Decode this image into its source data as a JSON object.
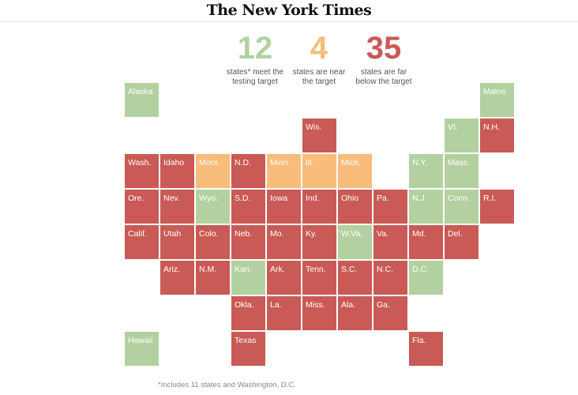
{
  "masthead": "The New York Times",
  "colors": {
    "meet": "#b3d1a0",
    "near": "#f8bc7b",
    "below": "#c95a55"
  },
  "stats": [
    {
      "value": "12",
      "line1": "states* meet the",
      "line2": "testing target",
      "status": "meet"
    },
    {
      "value": "4",
      "line1": "states are near",
      "line2": "the target",
      "status": "near"
    },
    {
      "value": "35",
      "line1": "states are far",
      "line2": "below the target",
      "status": "below"
    }
  ],
  "states": [
    {
      "label": "Alaska",
      "row": 0,
      "col": 0,
      "status": "meet"
    },
    {
      "label": "Maine",
      "row": 0,
      "col": 10,
      "status": "meet"
    },
    {
      "label": "Wis.",
      "row": 1,
      "col": 5,
      "status": "below"
    },
    {
      "label": "Vt.",
      "row": 1,
      "col": 9,
      "status": "meet"
    },
    {
      "label": "N.H.",
      "row": 1,
      "col": 10,
      "status": "below"
    },
    {
      "label": "Wash.",
      "row": 2,
      "col": 0,
      "status": "below"
    },
    {
      "label": "Idaho",
      "row": 2,
      "col": 1,
      "status": "below"
    },
    {
      "label": "Mont.",
      "row": 2,
      "col": 2,
      "status": "near"
    },
    {
      "label": "N.D.",
      "row": 2,
      "col": 3,
      "status": "below"
    },
    {
      "label": "Minn.",
      "row": 2,
      "col": 4,
      "status": "near"
    },
    {
      "label": "Ill.",
      "row": 2,
      "col": 5,
      "status": "near"
    },
    {
      "label": "Mich.",
      "row": 2,
      "col": 6,
      "status": "near"
    },
    {
      "label": "N.Y.",
      "row": 2,
      "col": 8,
      "status": "meet"
    },
    {
      "label": "Mass.",
      "row": 2,
      "col": 9,
      "status": "meet"
    },
    {
      "label": "Ore.",
      "row": 3,
      "col": 0,
      "status": "below"
    },
    {
      "label": "Nev.",
      "row": 3,
      "col": 1,
      "status": "below"
    },
    {
      "label": "Wyo.",
      "row": 3,
      "col": 2,
      "status": "meet"
    },
    {
      "label": "S.D.",
      "row": 3,
      "col": 3,
      "status": "below"
    },
    {
      "label": "Iowa",
      "row": 3,
      "col": 4,
      "status": "below"
    },
    {
      "label": "Ind.",
      "row": 3,
      "col": 5,
      "status": "below"
    },
    {
      "label": "Ohio",
      "row": 3,
      "col": 6,
      "status": "below"
    },
    {
      "label": "Pa.",
      "row": 3,
      "col": 7,
      "status": "below"
    },
    {
      "label": "N.J.",
      "row": 3,
      "col": 8,
      "status": "meet"
    },
    {
      "label": "Conn.",
      "row": 3,
      "col": 9,
      "status": "meet"
    },
    {
      "label": "R.I.",
      "row": 3,
      "col": 10,
      "status": "below"
    },
    {
      "label": "Calif.",
      "row": 4,
      "col": 0,
      "status": "below"
    },
    {
      "label": "Utah",
      "row": 4,
      "col": 1,
      "status": "below"
    },
    {
      "label": "Colo.",
      "row": 4,
      "col": 2,
      "status": "below"
    },
    {
      "label": "Neb.",
      "row": 4,
      "col": 3,
      "status": "below"
    },
    {
      "label": "Mo.",
      "row": 4,
      "col": 4,
      "status": "below"
    },
    {
      "label": "Ky.",
      "row": 4,
      "col": 5,
      "status": "below"
    },
    {
      "label": "W.Va.",
      "row": 4,
      "col": 6,
      "status": "meet"
    },
    {
      "label": "Va.",
      "row": 4,
      "col": 7,
      "status": "below"
    },
    {
      "label": "Md.",
      "row": 4,
      "col": 8,
      "status": "below"
    },
    {
      "label": "Del.",
      "row": 4,
      "col": 9,
      "status": "below"
    },
    {
      "label": "Ariz.",
      "row": 5,
      "col": 1,
      "status": "below"
    },
    {
      "label": "N.M.",
      "row": 5,
      "col": 2,
      "status": "below"
    },
    {
      "label": "Kan.",
      "row": 5,
      "col": 3,
      "status": "meet"
    },
    {
      "label": "Ark.",
      "row": 5,
      "col": 4,
      "status": "below"
    },
    {
      "label": "Tenn.",
      "row": 5,
      "col": 5,
      "status": "below"
    },
    {
      "label": "S.C.",
      "row": 5,
      "col": 6,
      "status": "below"
    },
    {
      "label": "N.C.",
      "row": 5,
      "col": 7,
      "status": "below"
    },
    {
      "label": "D.C.",
      "row": 5,
      "col": 8,
      "status": "meet"
    },
    {
      "label": "Okla.",
      "row": 6,
      "col": 3,
      "status": "below"
    },
    {
      "label": "La.",
      "row": 6,
      "col": 4,
      "status": "below"
    },
    {
      "label": "Miss.",
      "row": 6,
      "col": 5,
      "status": "below"
    },
    {
      "label": "Ala.",
      "row": 6,
      "col": 6,
      "status": "below"
    },
    {
      "label": "Ga.",
      "row": 6,
      "col": 7,
      "status": "below"
    },
    {
      "label": "Hawaii",
      "row": 7,
      "col": 0,
      "status": "meet"
    },
    {
      "label": "Texas",
      "row": 7,
      "col": 3,
      "status": "below"
    },
    {
      "label": "Fla.",
      "row": 7,
      "col": 8,
      "status": "below"
    }
  ],
  "footnote": "*Includes 11 states and Washington, D.C."
}
